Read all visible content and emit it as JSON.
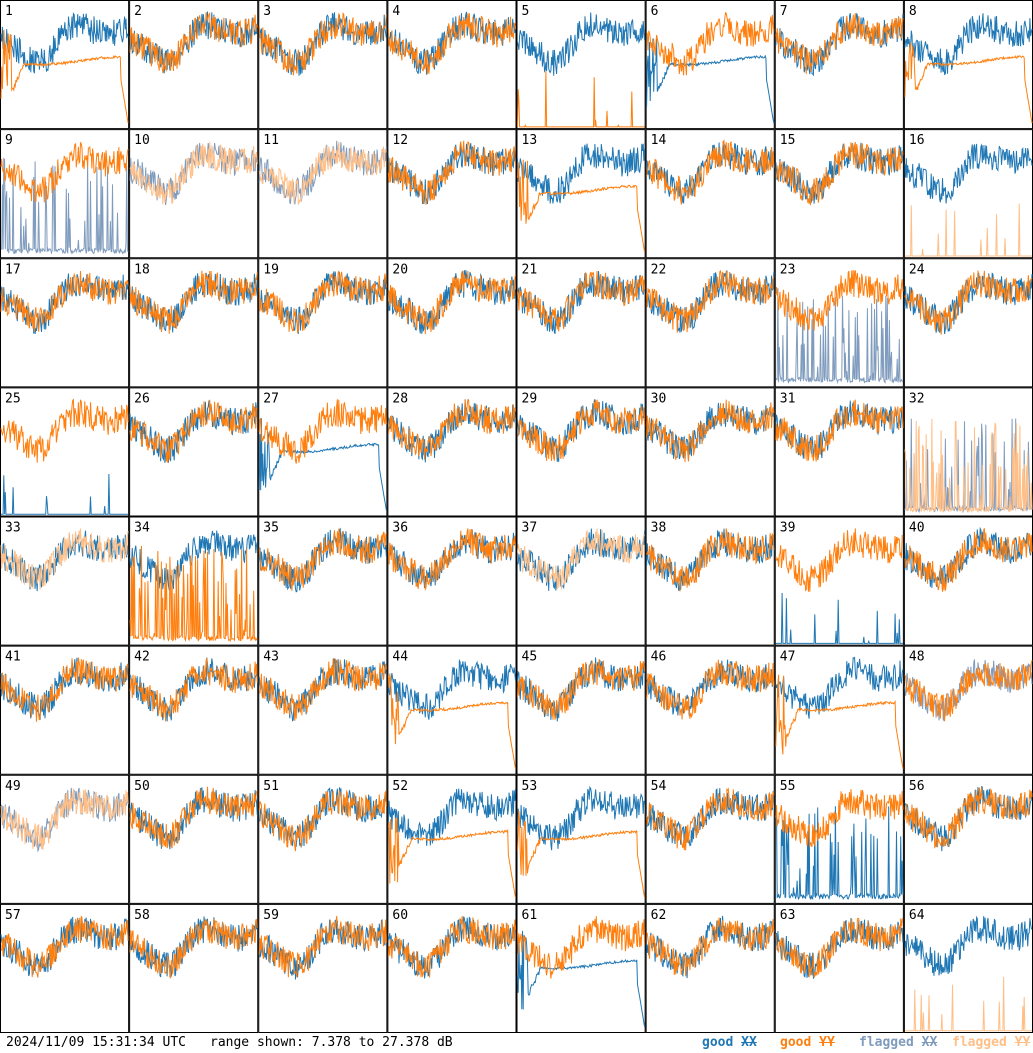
{
  "footer": {
    "timestamp": "2024/11/09 15:31:34 UTC",
    "range_text": "range shown: 7.378 to 27.378 dB"
  },
  "legend": [
    {
      "status": "good",
      "pol": "XX",
      "color": "#1f77b4"
    },
    {
      "status": "good",
      "pol": "YY",
      "color": "#ff7f0e"
    },
    {
      "status": "flagged",
      "pol": "XX",
      "color": "#7f9bbd"
    },
    {
      "status": "flagged",
      "pol": "YY",
      "color": "#ffbf87"
    }
  ],
  "chart_data": {
    "type": "line",
    "grid": {
      "rows": 8,
      "cols": 8
    },
    "ylim": [
      7.378,
      27.378
    ],
    "yunit": "dB",
    "colors": {
      "good_xx": "#1f77b4",
      "good_yy": "#ff7f0e",
      "flagged_xx": "#7f9bbd",
      "flagged_yy": "#ffbf87"
    },
    "panels": [
      {
        "label": "1",
        "xx": "good",
        "yy": "good",
        "yy_shape": "plateau"
      },
      {
        "label": "2",
        "xx": "good",
        "yy": "good"
      },
      {
        "label": "3",
        "xx": "good",
        "yy": "good"
      },
      {
        "label": "4",
        "xx": "good",
        "yy": "good"
      },
      {
        "label": "5",
        "xx": "good",
        "yy": "good",
        "yy_shape": "sparse_spikes"
      },
      {
        "label": "6",
        "xx": "good",
        "yy": "good",
        "xx_shape": "plateau"
      },
      {
        "label": "7",
        "xx": "good",
        "yy": "good"
      },
      {
        "label": "8",
        "xx": "good",
        "yy": "good",
        "yy_shape": "plateau"
      },
      {
        "label": "9",
        "xx": "flagged",
        "yy": "good",
        "xx_shape": "spikes"
      },
      {
        "label": "10",
        "xx": "flagged",
        "yy": "flagged"
      },
      {
        "label": "11",
        "xx": "flagged",
        "yy": "flagged"
      },
      {
        "label": "12",
        "xx": "good",
        "yy": "good"
      },
      {
        "label": "13",
        "xx": "good",
        "yy": "good",
        "yy_shape": "plateau"
      },
      {
        "label": "14",
        "xx": "good",
        "yy": "good"
      },
      {
        "label": "15",
        "xx": "good",
        "yy": "good"
      },
      {
        "label": "16",
        "xx": "good",
        "yy": "flagged",
        "yy_shape": "sparse_spikes"
      },
      {
        "label": "17",
        "xx": "good",
        "yy": "good"
      },
      {
        "label": "18",
        "xx": "good",
        "yy": "good"
      },
      {
        "label": "19",
        "xx": "good",
        "yy": "good"
      },
      {
        "label": "20",
        "xx": "good",
        "yy": "good"
      },
      {
        "label": "21",
        "xx": "good",
        "yy": "good"
      },
      {
        "label": "22",
        "xx": "good",
        "yy": "good"
      },
      {
        "label": "23",
        "xx": "flagged",
        "yy": "good",
        "xx_shape": "spikes"
      },
      {
        "label": "24",
        "xx": "good",
        "yy": "good"
      },
      {
        "label": "25",
        "xx": "good",
        "yy": "good",
        "xx_shape": "sparse_spikes"
      },
      {
        "label": "26",
        "xx": "good",
        "yy": "good"
      },
      {
        "label": "27",
        "xx": "good",
        "yy": "good",
        "xx_shape": "plateau"
      },
      {
        "label": "28",
        "xx": "good",
        "yy": "good"
      },
      {
        "label": "29",
        "xx": "good",
        "yy": "good"
      },
      {
        "label": "30",
        "xx": "good",
        "yy": "good"
      },
      {
        "label": "31",
        "xx": "good",
        "yy": "good"
      },
      {
        "label": "32",
        "xx": "flagged",
        "yy": "flagged",
        "xx_shape": "spikes",
        "yy_shape": "spikes"
      },
      {
        "label": "33",
        "xx": "good",
        "yy": "flagged"
      },
      {
        "label": "34",
        "xx": "good",
        "yy": "good",
        "yy_shape": "spikes"
      },
      {
        "label": "35",
        "xx": "good",
        "yy": "good"
      },
      {
        "label": "36",
        "xx": "good",
        "yy": "good"
      },
      {
        "label": "37",
        "xx": "good",
        "yy": "flagged"
      },
      {
        "label": "38",
        "xx": "good",
        "yy": "good"
      },
      {
        "label": "39",
        "xx": "good",
        "yy": "good",
        "xx_shape": "sparse_spikes"
      },
      {
        "label": "40",
        "xx": "good",
        "yy": "good"
      },
      {
        "label": "41",
        "xx": "good",
        "yy": "good"
      },
      {
        "label": "42",
        "xx": "good",
        "yy": "good"
      },
      {
        "label": "43",
        "xx": "good",
        "yy": "good"
      },
      {
        "label": "44",
        "xx": "good",
        "yy": "good",
        "yy_shape": "plateau"
      },
      {
        "label": "45",
        "xx": "good",
        "yy": "good"
      },
      {
        "label": "46",
        "xx": "good",
        "yy": "good"
      },
      {
        "label": "47",
        "xx": "good",
        "yy": "good",
        "yy_shape": "plateau"
      },
      {
        "label": "48",
        "xx": "flagged",
        "yy": "good"
      },
      {
        "label": "49",
        "xx": "flagged",
        "yy": "flagged"
      },
      {
        "label": "50",
        "xx": "good",
        "yy": "good"
      },
      {
        "label": "51",
        "xx": "good",
        "yy": "good"
      },
      {
        "label": "52",
        "xx": "good",
        "yy": "good",
        "yy_shape": "plateau"
      },
      {
        "label": "53",
        "xx": "good",
        "yy": "good",
        "yy_shape": "plateau"
      },
      {
        "label": "54",
        "xx": "good",
        "yy": "good"
      },
      {
        "label": "55",
        "xx": "good",
        "yy": "good",
        "xx_shape": "spikes"
      },
      {
        "label": "56",
        "xx": "good",
        "yy": "good"
      },
      {
        "label": "57",
        "xx": "good",
        "yy": "good"
      },
      {
        "label": "58",
        "xx": "good",
        "yy": "good"
      },
      {
        "label": "59",
        "xx": "good",
        "yy": "good"
      },
      {
        "label": "60",
        "xx": "good",
        "yy": "good"
      },
      {
        "label": "61",
        "xx": "good",
        "yy": "good",
        "xx_shape": "plateau"
      },
      {
        "label": "62",
        "xx": "good",
        "yy": "good"
      },
      {
        "label": "63",
        "xx": "good",
        "yy": "good"
      },
      {
        "label": "64",
        "xx": "good",
        "yy": "flagged",
        "yy_shape": "sparse_spikes"
      }
    ]
  }
}
